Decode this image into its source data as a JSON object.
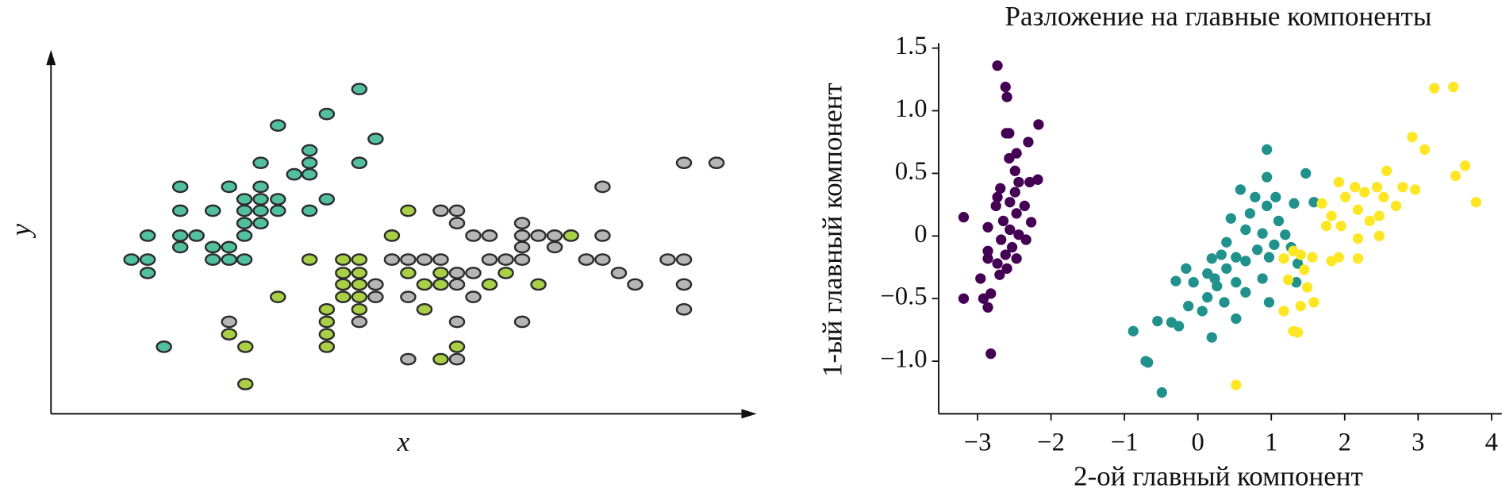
{
  "chart_data": [
    {
      "type": "scatter",
      "x_label": "x",
      "y_label": "y",
      "xlim": [
        0,
        737
      ],
      "ylim": [
        0,
        377
      ],
      "marker_stroke": "#2b2b2b",
      "series": [
        {
          "color": "#52bfa0",
          "x": [
            322,
            288,
            237,
            339,
            270,
            219,
            270,
            322,
            254,
            270,
            135,
            186,
            219,
            202,
            219,
            237,
            288,
            135,
            169,
            202,
            219,
            237,
            270,
            202,
            219,
            101,
            135,
            152,
            202,
            135,
            169,
            186,
            84,
            101,
            169,
            186,
            202,
            101,
            118
          ],
          "values": [
            339,
            313,
            301,
            287,
            275,
            262,
            262,
            262,
            250,
            250,
            237,
            237,
            237,
            224,
            224,
            224,
            224,
            212,
            212,
            212,
            212,
            212,
            212,
            199,
            199,
            186,
            186,
            186,
            186,
            174,
            174,
            174,
            161,
            161,
            161,
            161,
            161,
            147,
            70
          ]
        },
        {
          "color": "#a8cf45",
          "x": [
            373,
            356,
            543,
            270,
            305,
            322,
            305,
            322,
            373,
            407,
            475,
            305,
            322,
            390,
            407,
            458,
            509,
            237,
            305,
            322,
            288,
            322,
            390,
            186,
            288,
            288,
            203,
            288,
            424,
            407,
            203
          ],
          "values": [
            212,
            186,
            186,
            161,
            161,
            161,
            147,
            147,
            147,
            147,
            147,
            135,
            135,
            135,
            135,
            135,
            135,
            122,
            122,
            122,
            109,
            109,
            109,
            83,
            96,
            83,
            70,
            70,
            70,
            57,
            31
          ]
        },
        {
          "color": "#b5b5b5",
          "x": [
            661,
            695,
            576,
            407,
            424,
            424,
            492,
            441,
            458,
            492,
            509,
            526,
            576,
            526,
            492,
            356,
            373,
            390,
            407,
            458,
            475,
            492,
            559,
            576,
            644,
            661,
            424,
            441,
            593,
            339,
            424,
            610,
            661,
            339,
            373,
            441,
            661,
            186,
            322,
            424,
            492,
            373,
            424
          ],
          "values": [
            262,
            262,
            237,
            212,
            212,
            199,
            199,
            186,
            186,
            186,
            186,
            186,
            186,
            174,
            174,
            161,
            161,
            161,
            161,
            161,
            161,
            161,
            161,
            161,
            161,
            161,
            147,
            147,
            147,
            135,
            135,
            135,
            135,
            122,
            122,
            122,
            109,
            96,
            96,
            96,
            96,
            57,
            57
          ]
        }
      ]
    },
    {
      "type": "scatter",
      "title": "Разложение на главные компоненты",
      "x_label": "2-ой главный компонент",
      "y_label": "1-ый главный компонент",
      "xlim": [
        -3.53,
        4.1
      ],
      "ylim": [
        -1.42,
        1.54
      ],
      "xticks": [
        {
          "value": -3,
          "label": "−3"
        },
        {
          "value": -2,
          "label": "−2"
        },
        {
          "value": -1,
          "label": "−1"
        },
        0,
        1,
        2,
        3,
        4
      ],
      "yticks": [
        {
          "value": -1.0,
          "label": "−1.0"
        },
        {
          "value": -0.5,
          "label": "−0.5"
        },
        0,
        0.5,
        {
          "value": 1.0,
          "label": "1.0"
        },
        1.5
      ],
      "series": [
        {
          "color": "#440154",
          "x": [
            -2.73,
            -2.62,
            -2.6,
            -2.17,
            -2.61,
            -2.57,
            -2.47,
            -2.31,
            -2.57,
            -2.49,
            -2.18,
            -2.29,
            -2.44,
            -2.69,
            -2.49,
            -2.73,
            -2.56,
            -2.75,
            -2.36,
            -2.47,
            -3.19,
            -2.65,
            -2.27,
            -2.86,
            -2.56,
            -2.44,
            -2.68,
            -2.34,
            -2.53,
            -2.86,
            -2.62,
            -2.47,
            -2.73,
            -2.86,
            -2.6,
            -2.7,
            -2.96,
            -2.82,
            -3.19,
            -2.92,
            -2.86,
            -2.82
          ],
          "values": [
            1.36,
            1.19,
            1.11,
            0.89,
            0.82,
            0.82,
            0.66,
            0.75,
            0.62,
            0.52,
            0.45,
            0.43,
            0.43,
            0.38,
            0.35,
            0.31,
            0.27,
            0.24,
            0.24,
            0.18,
            0.15,
            0.12,
            0.11,
            0.07,
            0.05,
            0.01,
            -0.03,
            -0.03,
            -0.09,
            -0.12,
            -0.15,
            -0.18,
            -0.22,
            -0.18,
            -0.26,
            -0.31,
            -0.34,
            -0.46,
            -0.5,
            -0.5,
            -0.57,
            -0.94
          ]
        },
        {
          "color": "#21918c",
          "x": [
            0.94,
            1.47,
            0.94,
            0.58,
            0.78,
            1.06,
            1.31,
            1.58,
            0.94,
            0.71,
            0.45,
            1.1,
            0.65,
            0.88,
            1.19,
            0.39,
            1.04,
            0.81,
            1.27,
            0.32,
            0.52,
            0.19,
            0.65,
            0.97,
            1.36,
            -0.16,
            0.13,
            0.39,
            0.23,
            -0.06,
            0.26,
            0.52,
            0.88,
            1.34,
            -0.3,
            0.65,
            0.13,
            0.36,
            -0.13,
            0.06,
            0.52,
            0.97,
            -0.55,
            -0.36,
            -0.26,
            0.19,
            -0.88,
            -0.71,
            -0.68,
            -0.49
          ],
          "values": [
            0.69,
            0.5,
            0.47,
            0.37,
            0.31,
            0.31,
            0.26,
            0.27,
            0.24,
            0.18,
            0.14,
            0.12,
            0.05,
            0.02,
            0.01,
            -0.05,
            -0.07,
            -0.11,
            -0.09,
            -0.15,
            -0.17,
            -0.18,
            -0.2,
            -0.17,
            -0.22,
            -0.26,
            -0.3,
            -0.26,
            -0.34,
            -0.37,
            -0.4,
            -0.37,
            -0.34,
            -0.37,
            -0.36,
            -0.45,
            -0.49,
            -0.53,
            -0.56,
            -0.6,
            -0.66,
            -0.53,
            -0.68,
            -0.69,
            -0.72,
            -0.81,
            -0.76,
            -1.0,
            -1.01,
            -1.25
          ]
        },
        {
          "color": "#fde725",
          "x": [
            3.22,
            3.48,
            2.92,
            3.09,
            2.57,
            3.64,
            1.92,
            2.14,
            2.44,
            2.79,
            2.96,
            2.01,
            2.27,
            2.53,
            1.69,
            2.7,
            1.82,
            2.18,
            2.47,
            1.75,
            1.95,
            2.34,
            3.79,
            2.18,
            2.47,
            1.92,
            2.18,
            1.82,
            1.3,
            1.4,
            1.56,
            1.17,
            1.45,
            1.23,
            1.49,
            1.58,
            1.17,
            1.4,
            1.3,
            1.36,
            0.52,
            3.51
          ],
          "values": [
            1.18,
            1.19,
            0.79,
            0.69,
            0.52,
            0.56,
            0.43,
            0.39,
            0.39,
            0.39,
            0.37,
            0.31,
            0.35,
            0.31,
            0.26,
            0.24,
            0.16,
            0.21,
            0.16,
            0.08,
            0.08,
            0.12,
            0.27,
            -0.02,
            0.0,
            -0.17,
            -0.18,
            -0.2,
            -0.12,
            -0.15,
            -0.17,
            -0.18,
            -0.27,
            -0.35,
            -0.41,
            -0.53,
            -0.6,
            -0.56,
            -0.76,
            -0.77,
            -1.19,
            0.48
          ]
        }
      ]
    }
  ]
}
